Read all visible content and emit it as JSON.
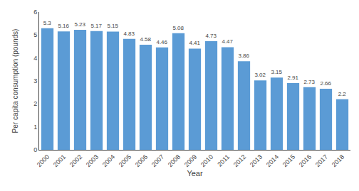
{
  "chart_data": {
    "type": "bar",
    "categories": [
      "2000",
      "2001",
      "2002",
      "2003",
      "2004",
      "2005",
      "2006",
      "2007",
      "2008",
      "2009",
      "2010",
      "2011",
      "2012",
      "2013",
      "2014",
      "2015",
      "2016",
      "2017",
      "2018"
    ],
    "values": [
      5.3,
      5.16,
      5.23,
      5.17,
      5.15,
      4.83,
      4.58,
      4.46,
      5.08,
      4.41,
      4.73,
      4.47,
      3.86,
      3.02,
      3.15,
      2.91,
      2.73,
      2.66,
      2.2
    ],
    "color": "#5B9BD5",
    "xlabel": "Year",
    "ylabel": "Per capita consumption (pounds)",
    "ylim": [
      0,
      6
    ],
    "yticks": [
      0,
      1,
      2,
      3,
      4,
      5,
      6
    ],
    "grid": false,
    "data_labels": true
  }
}
